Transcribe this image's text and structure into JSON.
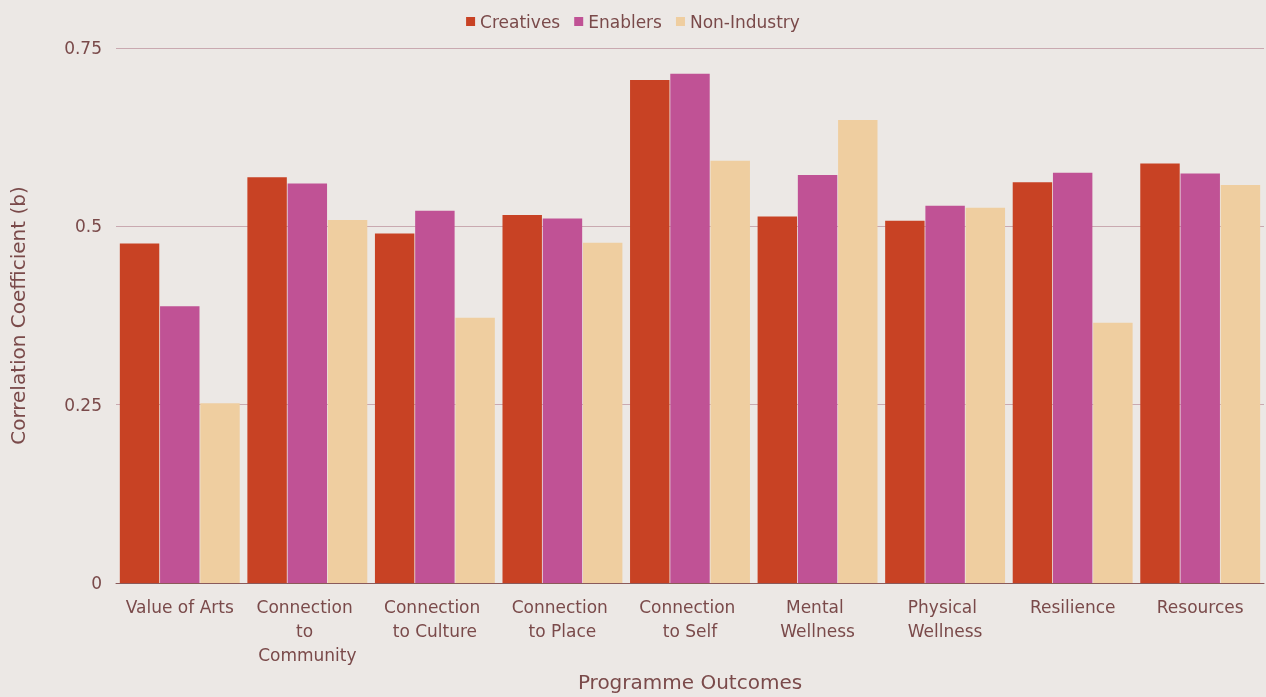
{
  "chart_data": {
    "type": "bar",
    "xlabel": "Programme Outcomes",
    "ylabel": "Correlation Coefficient (b)",
    "categories": [
      "Value of Arts",
      "Connection to Community",
      "Connection to Culture",
      "Connection to Place",
      "Connection to Self",
      "Mental Wellness",
      "Physical Wellness",
      "Resilience",
      "Resources"
    ],
    "series": [
      {
        "name": "Creatives",
        "color": "#c84224",
        "values": [
          0.476,
          0.569,
          0.49,
          0.516,
          0.705,
          0.514,
          0.508,
          0.562,
          0.588
        ]
      },
      {
        "name": "Enablers",
        "color": "#c05295",
        "values": [
          0.388,
          0.56,
          0.522,
          0.511,
          0.714,
          0.572,
          0.529,
          0.575,
          0.574
        ]
      },
      {
        "name": "Non-Industry",
        "color": "#efcea0",
        "values": [
          0.252,
          0.509,
          0.372,
          0.477,
          0.592,
          0.649,
          0.526,
          0.365,
          0.558
        ]
      }
    ],
    "ylim": [
      0,
      0.75
    ],
    "yticks": [
      0,
      0.25,
      0.5,
      0.75
    ],
    "grid": "y",
    "legend": "top"
  }
}
